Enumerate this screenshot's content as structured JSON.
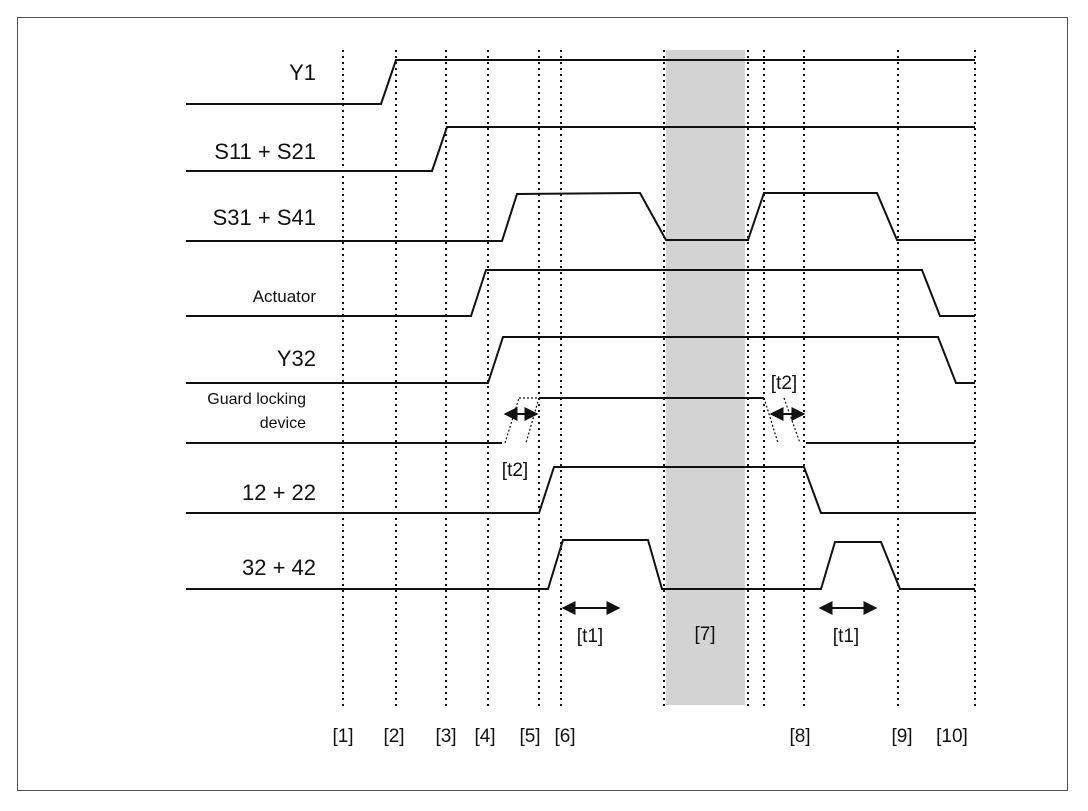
{
  "diagram": {
    "signals": [
      {
        "id": "y1",
        "label": "Y1"
      },
      {
        "id": "s11",
        "label": "S11 + S21"
      },
      {
        "id": "s31",
        "label": "S31 + S41"
      },
      {
        "id": "actuator",
        "label": "Actuator"
      },
      {
        "id": "y32",
        "label": "Y32"
      },
      {
        "id": "guard",
        "label_line1": "Guard locking",
        "label_line2": "device"
      },
      {
        "id": "out12",
        "label": "12 + 22"
      },
      {
        "id": "out32",
        "label": "32 + 42"
      }
    ],
    "markers": [
      "[1]",
      "[2]",
      "[3]",
      "[4]",
      "[5]",
      "[6]",
      "[8]",
      "[9]",
      "[10]"
    ],
    "interval_labels": {
      "t1": "[t1]",
      "t2": "[t2]",
      "period7": "[7]"
    },
    "colors": {
      "line": "#111111",
      "shaded_band": "#d3d3d3",
      "frame": "#555555"
    }
  }
}
